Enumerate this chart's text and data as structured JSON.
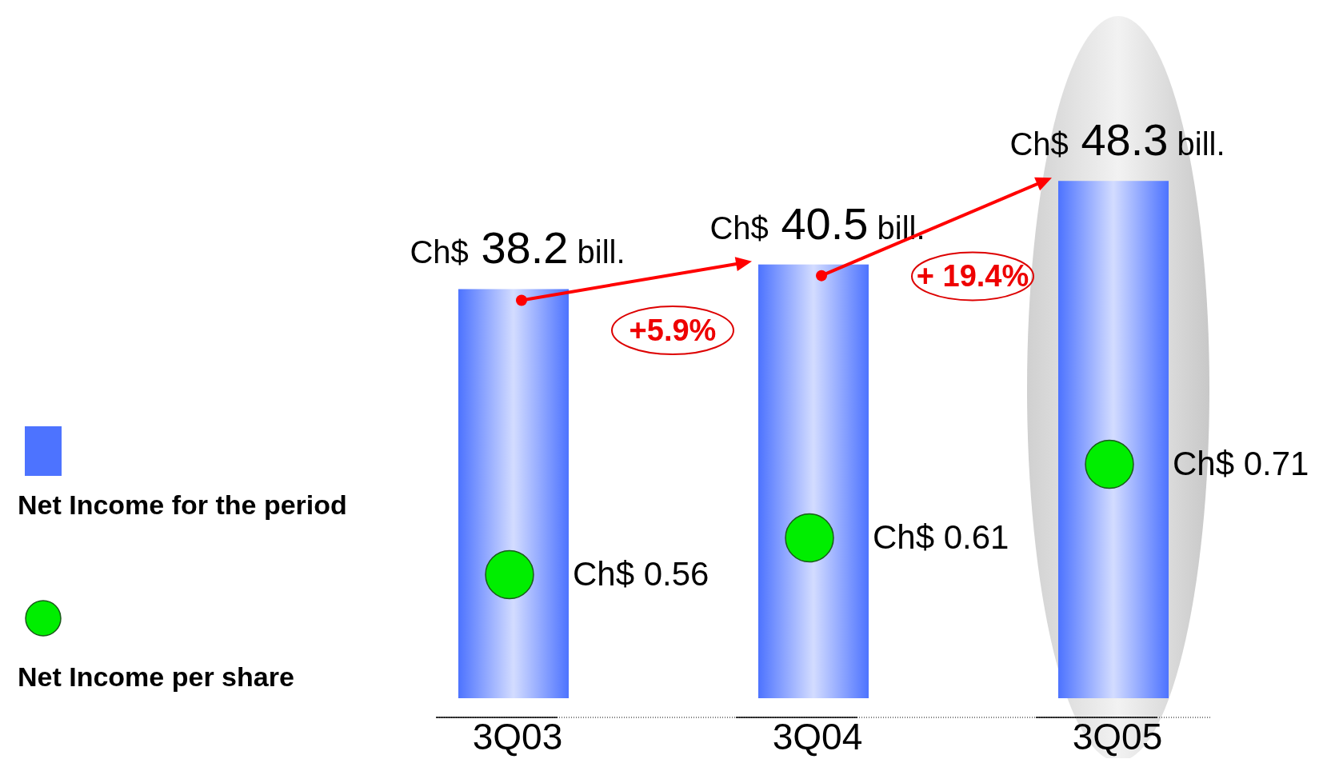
{
  "chart_data": {
    "type": "bar",
    "categories": [
      "3Q03",
      "3Q04",
      "3Q05"
    ],
    "series": [
      {
        "name": "Net Income for the period",
        "color": "#4d73ff",
        "values": [
          38.2,
          40.5,
          48.3
        ],
        "value_labels": [
          "Ch$ 38.2 bill.",
          "Ch$ 40.5 bill.",
          "Ch$ 48.3 bill."
        ]
      },
      {
        "name": "Net Income per share",
        "type": "scatter",
        "axis": "y2",
        "color": "#00ee00",
        "x": [
          "3Q03",
          "3Q04",
          "3Q05"
        ],
        "values": [
          0.56,
          0.61,
          0.71
        ],
        "value_labels": [
          "Ch$ 0.56",
          "Ch$ 0.61",
          "Ch$ 0.71"
        ]
      }
    ],
    "tick_labels": "x",
    "legend": "left",
    "marker": "circle",
    "annotations": [
      "+5.9%",
      "+ 19.4%"
    ]
  }
}
